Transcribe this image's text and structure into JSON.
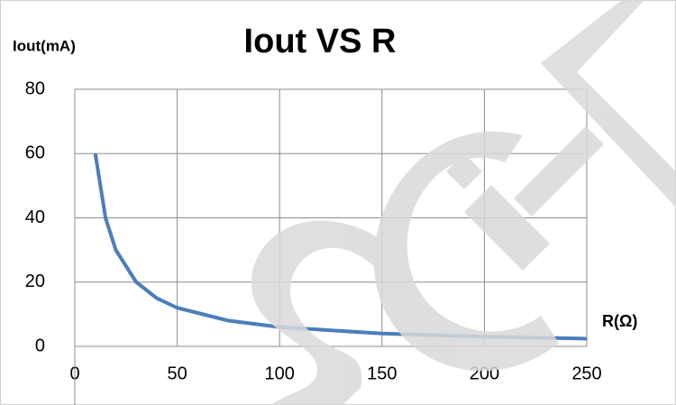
{
  "chart_data": {
    "type": "line",
    "title": "Iout VS R",
    "x_label": "R(Ω)",
    "y_label": "Iout(mA)",
    "x": [
      10,
      15,
      20,
      30,
      40,
      50,
      75,
      100,
      150,
      200,
      250
    ],
    "series": [
      {
        "name": "Iout",
        "color": "#4a7ebb",
        "values": [
          60,
          40,
          30,
          20,
          15,
          12,
          8,
          6,
          4,
          3,
          2.4
        ]
      }
    ],
    "xlim": [
      0,
      250
    ],
    "xticks": [
      0,
      50,
      100,
      150,
      200,
      250
    ],
    "ylim": [
      0,
      80
    ],
    "yticks": [
      0,
      20,
      40,
      60,
      80
    ],
    "grid": true
  }
}
